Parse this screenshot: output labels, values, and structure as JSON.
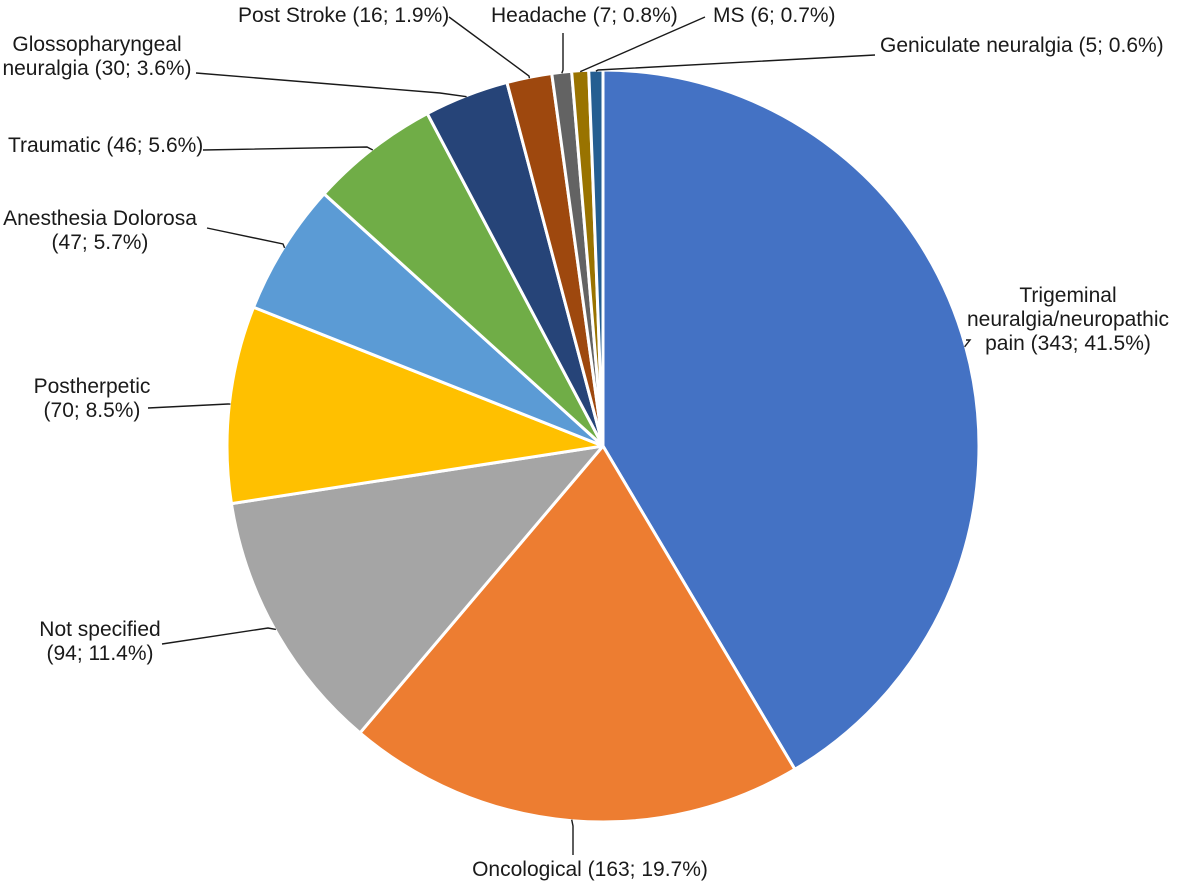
{
  "chart_data": {
    "type": "pie",
    "start_position": "12 o'clock",
    "direction": "clockwise",
    "slices": [
      {
        "key": "trigeminal",
        "label_lines": [
          "Trigeminal",
          "neuralgia/neuropathic",
          "pain (343; 41.5%)"
        ],
        "value": 343,
        "percent": 41.5,
        "color": "#4472C4"
      },
      {
        "key": "oncological",
        "label_lines": [
          "Oncological (163; 19.7%)"
        ],
        "value": 163,
        "percent": 19.7,
        "color": "#ED7D31"
      },
      {
        "key": "not-specified",
        "label_lines": [
          "Not specified",
          "(94; 11.4%)"
        ],
        "value": 94,
        "percent": 11.4,
        "color": "#A5A5A5"
      },
      {
        "key": "postherpetic",
        "label_lines": [
          "Postherpetic",
          "(70; 8.5%)"
        ],
        "value": 70,
        "percent": 8.5,
        "color": "#FFC000"
      },
      {
        "key": "anesthesia-dolorosa",
        "label_lines": [
          "Anesthesia Dolorosa",
          "(47; 5.7%)"
        ],
        "value": 47,
        "percent": 5.7,
        "color": "#5B9BD5"
      },
      {
        "key": "traumatic",
        "label_lines": [
          "Traumatic (46; 5.6%)"
        ],
        "value": 46,
        "percent": 5.6,
        "color": "#70AD47"
      },
      {
        "key": "glossopharyngeal",
        "label_lines": [
          "Glossopharyngeal",
          "neuralgia (30; 3.6%)"
        ],
        "value": 30,
        "percent": 3.6,
        "color": "#264478"
      },
      {
        "key": "post-stroke",
        "label_lines": [
          "Post Stroke (16; 1.9%)"
        ],
        "value": 16,
        "percent": 1.9,
        "color": "#9E480E"
      },
      {
        "key": "headache",
        "label_lines": [
          "Headache (7; 0.8%)"
        ],
        "value": 7,
        "percent": 0.8,
        "color": "#636363"
      },
      {
        "key": "ms",
        "label_lines": [
          "MS (6; 0.7%)"
        ],
        "value": 6,
        "percent": 0.7,
        "color": "#997300"
      },
      {
        "key": "geniculate",
        "label_lines": [
          "Geniculate neuralgia (5; 0.6%)"
        ],
        "value": 5,
        "percent": 0.6,
        "color": "#255E91"
      }
    ]
  }
}
